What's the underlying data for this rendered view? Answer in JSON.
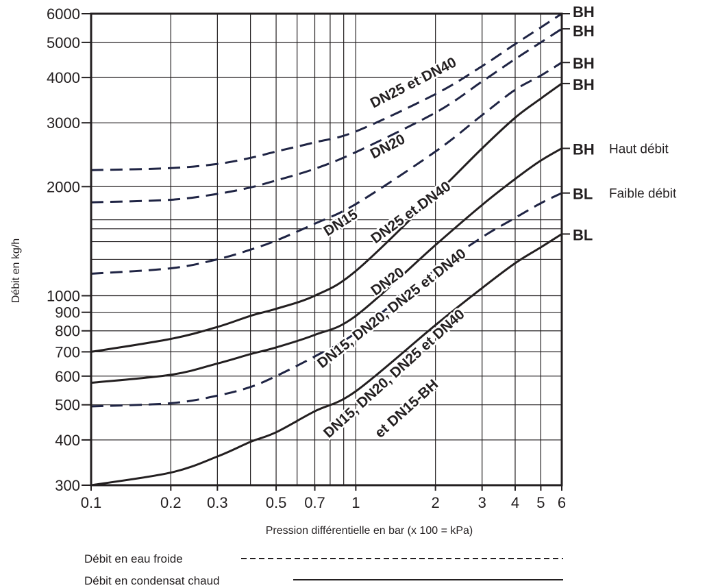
{
  "chart_data": {
    "type": "line",
    "title": "",
    "xlabel": "Pression différentielle en bar (x 100 = kPa)",
    "ylabel": "Débit en kg/h",
    "xscale": "log",
    "yscale": "log",
    "xlim": [
      0.1,
      6
    ],
    "ylim": [
      300,
      6000
    ],
    "grid": true,
    "x_ticks": [
      {
        "value": 0.1,
        "label": "0.1"
      },
      {
        "value": 0.2,
        "label": "0.2"
      },
      {
        "value": 0.3,
        "label": "0.3"
      },
      {
        "value": 0.5,
        "label": "0.5"
      },
      {
        "value": 0.7,
        "label": "0.7"
      },
      {
        "value": 1,
        "label": "1"
      },
      {
        "value": 2,
        "label": "2"
      },
      {
        "value": 3,
        "label": "3"
      },
      {
        "value": 4,
        "label": "4"
      },
      {
        "value": 5,
        "label": "5"
      },
      {
        "value": 6,
        "label": "6"
      }
    ],
    "x_grid": [
      0.2,
      0.3,
      0.4,
      0.5,
      0.6,
      0.7,
      0.8,
      0.9,
      1,
      2,
      3,
      4,
      5
    ],
    "y_ticks": [
      {
        "value": 300,
        "label": "300"
      },
      {
        "value": 400,
        "label": "400"
      },
      {
        "value": 500,
        "label": "500"
      },
      {
        "value": 600,
        "label": "600"
      },
      {
        "value": 700,
        "label": "700"
      },
      {
        "value": 800,
        "label": "800"
      },
      {
        "value": 900,
        "label": "900"
      },
      {
        "value": 1000,
        "label": "1000"
      },
      {
        "value": 2000,
        "label": "2000"
      },
      {
        "value": 3000,
        "label": "3000"
      },
      {
        "value": 4000,
        "label": "4000"
      },
      {
        "value": 5000,
        "label": "5000"
      },
      {
        "value": 6000,
        "label": "6000"
      }
    ],
    "y_grid": [
      400,
      500,
      600,
      700,
      800,
      900,
      1000,
      1260,
      1410,
      1530,
      1620,
      2000,
      3000,
      4000,
      5000
    ],
    "series": [
      {
        "style": "dashed",
        "points": [
          [
            0.1,
            2220
          ],
          [
            0.2,
            2250
          ],
          [
            0.3,
            2310
          ],
          [
            0.4,
            2400
          ],
          [
            0.5,
            2500
          ],
          [
            0.7,
            2650
          ],
          [
            1,
            2840
          ],
          [
            2,
            3600
          ],
          [
            3,
            4300
          ],
          [
            4,
            4950
          ],
          [
            5,
            5500
          ],
          [
            6,
            6000
          ]
        ],
        "curve_label": "DN25 et DN40",
        "end_label": "BH",
        "end_note": ""
      },
      {
        "style": "dashed",
        "points": [
          [
            0.1,
            1810
          ],
          [
            0.2,
            1840
          ],
          [
            0.3,
            1910
          ],
          [
            0.4,
            1990
          ],
          [
            0.5,
            2080
          ],
          [
            0.7,
            2240
          ],
          [
            1,
            2490
          ],
          [
            2,
            3200
          ],
          [
            3,
            3900
          ],
          [
            4,
            4500
          ],
          [
            5,
            5000
          ],
          [
            6,
            5450
          ]
        ],
        "curve_label": "DN20",
        "end_label": "BH",
        "end_note": ""
      },
      {
        "style": "dashed",
        "points": [
          [
            0.1,
            1150
          ],
          [
            0.2,
            1190
          ],
          [
            0.3,
            1260
          ],
          [
            0.4,
            1340
          ],
          [
            0.5,
            1420
          ],
          [
            0.7,
            1580
          ],
          [
            1,
            1790
          ],
          [
            2,
            2500
          ],
          [
            3,
            3150
          ],
          [
            4,
            3700
          ],
          [
            5,
            4050
          ],
          [
            6,
            4400
          ]
        ],
        "curve_label": "DN15",
        "end_label": "BH",
        "end_note": ""
      },
      {
        "style": "solid",
        "points": [
          [
            0.1,
            700
          ],
          [
            0.2,
            760
          ],
          [
            0.3,
            820
          ],
          [
            0.4,
            880
          ],
          [
            0.5,
            920
          ],
          [
            0.7,
            1000
          ],
          [
            1,
            1170
          ],
          [
            2,
            1900
          ],
          [
            3,
            2550
          ],
          [
            4,
            3100
          ],
          [
            5,
            3500
          ],
          [
            6,
            3850
          ]
        ],
        "curve_label": "DN25 et DN40",
        "end_label": "BH",
        "end_note": ""
      },
      {
        "style": "solid",
        "points": [
          [
            0.1,
            575
          ],
          [
            0.2,
            605
          ],
          [
            0.3,
            650
          ],
          [
            0.4,
            690
          ],
          [
            0.5,
            720
          ],
          [
            0.7,
            780
          ],
          [
            1,
            880
          ],
          [
            2,
            1380
          ],
          [
            3,
            1780
          ],
          [
            4,
            2100
          ],
          [
            5,
            2360
          ],
          [
            6,
            2550
          ]
        ],
        "curve_label": "DN20",
        "end_label": "BH",
        "end_note": "Haut débit"
      },
      {
        "style": "dashed",
        "points": [
          [
            0.1,
            495
          ],
          [
            0.2,
            505
          ],
          [
            0.3,
            530
          ],
          [
            0.4,
            560
          ],
          [
            0.5,
            600
          ],
          [
            0.7,
            680
          ],
          [
            1,
            790
          ],
          [
            2,
            1180
          ],
          [
            3,
            1450
          ],
          [
            4,
            1640
          ],
          [
            5,
            1800
          ],
          [
            6,
            1920
          ]
        ],
        "curve_label": "DN15, DN20, DN25 et DN40",
        "end_label": "BL",
        "end_note": "Faible débit"
      },
      {
        "style": "solid",
        "points": [
          [
            0.1,
            300
          ],
          [
            0.2,
            325
          ],
          [
            0.3,
            360
          ],
          [
            0.4,
            395
          ],
          [
            0.5,
            420
          ],
          [
            0.7,
            480
          ],
          [
            1,
            545
          ],
          [
            2,
            830
          ],
          [
            3,
            1050
          ],
          [
            4,
            1230
          ],
          [
            5,
            1360
          ],
          [
            6,
            1480
          ]
        ],
        "curve_label": "DN15, DN20, DN25 et DN40 et DN15-BH",
        "end_label": "BL",
        "end_note": ""
      }
    ],
    "curve_labels": [
      {
        "text": "DN25 et DN40",
        "bold_gray": "et"
      },
      {
        "text": "DN20"
      },
      {
        "text": "DN15"
      },
      {
        "text": "DN25 et DN40",
        "bold_gray": "et"
      },
      {
        "text": "DN20"
      },
      {
        "text": "DN15, DN20, DN25 et DN40"
      },
      {
        "text": "DN15, DN20, DN25 et DN40"
      },
      {
        "text": "et DN15-BH"
      }
    ],
    "legend": {
      "placement": "bottom",
      "entries": [
        {
          "label": "Débit en eau froide",
          "style": "dashed"
        },
        {
          "label": "Débit en condensat chaud",
          "style": "solid"
        }
      ]
    },
    "colors": {
      "dashed_line": "#1f2444",
      "solid_line": "#231f20",
      "grid": "#231f20",
      "text": "#231f20"
    }
  }
}
